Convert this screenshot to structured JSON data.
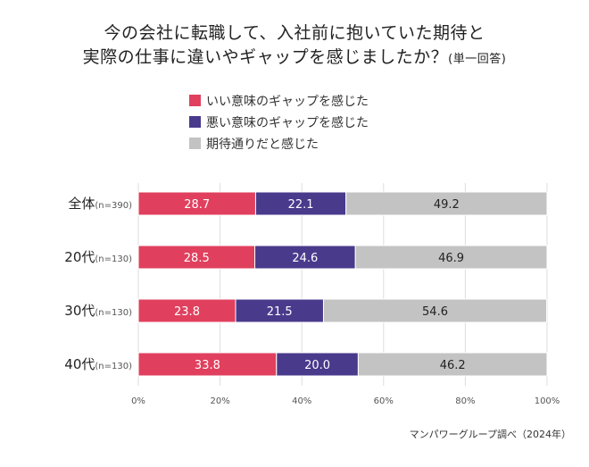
{
  "title": {
    "line1": "今の会社に転職して、入社前に抱いていた期待と",
    "line2": "実際の仕事に違いやギャップを感じましたか？",
    "note": "(単一回答)"
  },
  "source": "マンパワーグループ調べ（2024年）",
  "colors": {
    "good": "#e0405e",
    "bad": "#4a3a8c",
    "same": "#c3c3c3",
    "axis_text": "#555555"
  },
  "chart_data": {
    "type": "bar",
    "orientation": "horizontal",
    "stacked": true,
    "percent": true,
    "categories": [
      "全体",
      "20代",
      "30代",
      "40代"
    ],
    "category_notes": [
      "(n=390)",
      "(n=130)",
      "(n=130)",
      "(n=130)"
    ],
    "series": [
      {
        "name": "いい意味のギャップを感じた",
        "color": "#e0405e",
        "values": [
          28.7,
          28.5,
          23.8,
          33.8
        ]
      },
      {
        "name": "悪い意味のギャップを感じた",
        "color": "#4a3a8c",
        "values": [
          22.1,
          24.6,
          21.5,
          20.0
        ]
      },
      {
        "name": "期待通りだと感じた",
        "color": "#c3c3c3",
        "values": [
          49.2,
          46.9,
          54.6,
          46.2
        ]
      }
    ],
    "xlim": [
      0,
      100
    ],
    "xticks": [
      "0%",
      "20%",
      "40%",
      "60%",
      "80%",
      "100%"
    ],
    "legend": "top",
    "grid": true,
    "data_labels": true
  }
}
